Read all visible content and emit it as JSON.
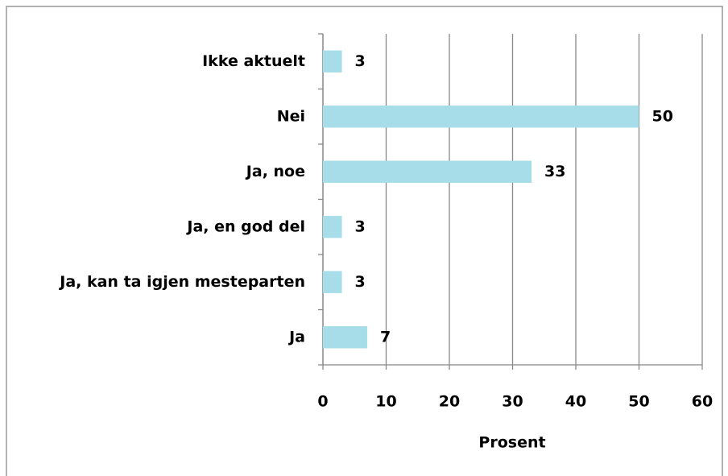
{
  "chart_data": {
    "type": "bar",
    "orientation": "horizontal",
    "categories": [
      "Ikke aktuelt",
      "Nei",
      "Ja, noe",
      "Ja, en god del",
      "Ja, kan ta igjen mesteparten",
      "Ja"
    ],
    "values": [
      3,
      50,
      33,
      3,
      3,
      7
    ],
    "color": "#a6dde9",
    "x_label": "Prosent",
    "xlim": [
      0,
      60
    ],
    "xticks": [
      0,
      10,
      20,
      30,
      40,
      50,
      60
    ],
    "grid": true,
    "data_labels": true
  }
}
